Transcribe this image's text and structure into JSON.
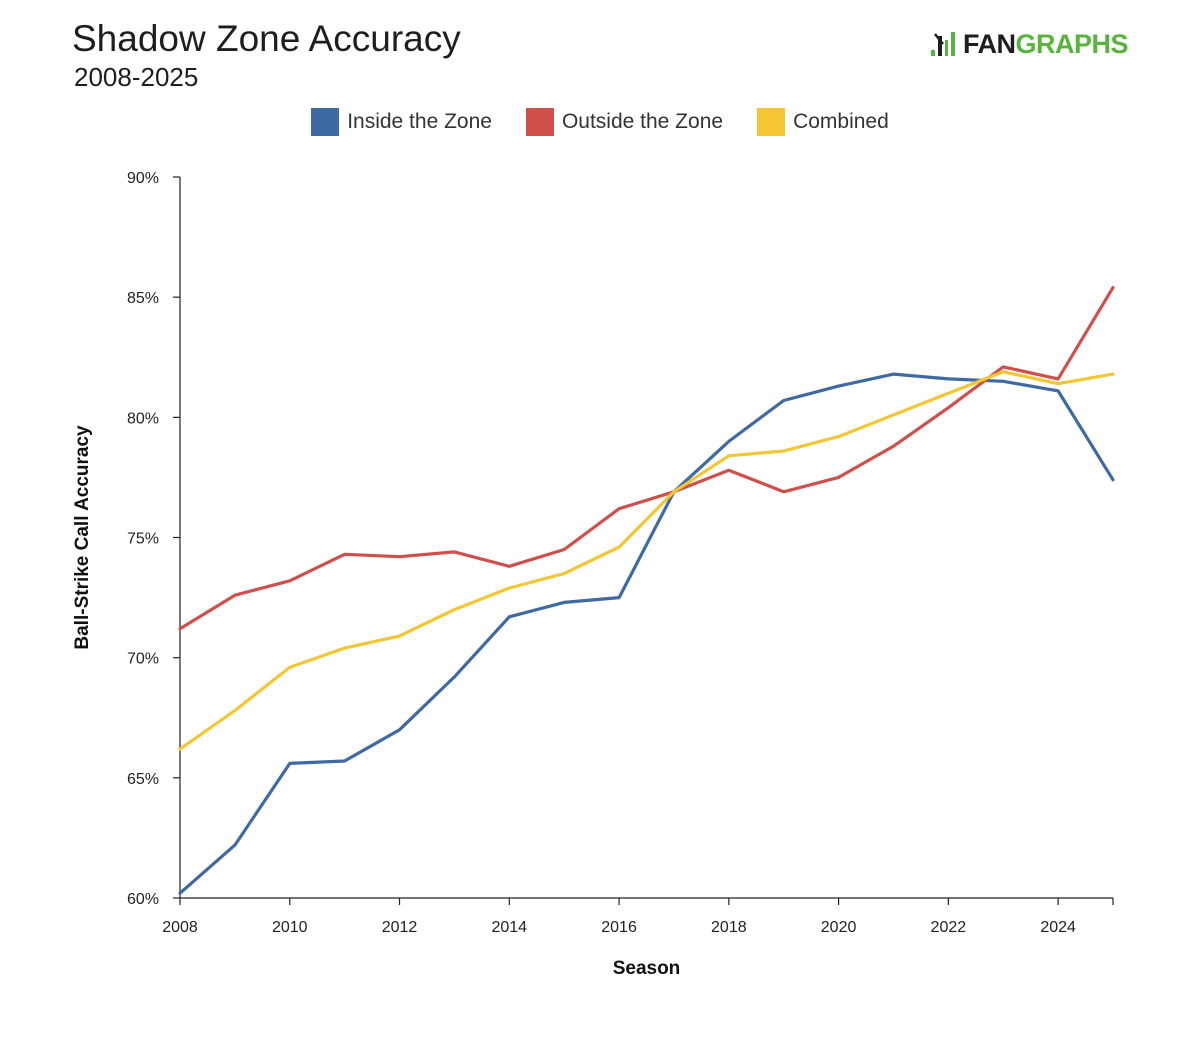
{
  "header": {
    "title": "Shadow Zone Accuracy",
    "subtitle": "2008-2025",
    "brand_left": "FAN",
    "brand_right": "GRAPHS",
    "brand_icon": "batter-icon"
  },
  "colors": {
    "inside": "#3f69a2",
    "outside": "#cf4f4b",
    "combined": "#f4c631",
    "axis": "#222222",
    "brand_green": "#58b33f"
  },
  "chart_data": {
    "type": "line",
    "title": "Shadow Zone Accuracy",
    "subtitle": "2008-2025",
    "xlabel": "Season",
    "ylabel": "Ball-Strike Call Accuracy",
    "x": [
      2008,
      2009,
      2010,
      2011,
      2012,
      2013,
      2014,
      2015,
      2016,
      2017,
      2018,
      2019,
      2020,
      2021,
      2022,
      2023,
      2024,
      2025
    ],
    "xlim": [
      2008,
      2025
    ],
    "ylim": [
      60,
      90
    ],
    "x_ticks": [
      2008,
      2010,
      2012,
      2014,
      2016,
      2018,
      2020,
      2022,
      2024
    ],
    "x_tick_labels": [
      "2008",
      "2010",
      "2012",
      "2014",
      "2016",
      "2018",
      "2020",
      "2022",
      "2024"
    ],
    "y_ticks": [
      60,
      65,
      70,
      75,
      80,
      85,
      90
    ],
    "y_tick_labels": [
      "60%",
      "65%",
      "70%",
      "75%",
      "80%",
      "85%",
      "90%"
    ],
    "grid": false,
    "legend_position": "top-center",
    "series": [
      {
        "name": "Inside the Zone",
        "color": "#3f69a2",
        "values": [
          60.2,
          62.2,
          65.6,
          65.7,
          67.0,
          69.2,
          71.7,
          72.3,
          72.5,
          76.9,
          79.0,
          80.7,
          81.3,
          81.8,
          81.6,
          81.5,
          81.1,
          77.4
        ]
      },
      {
        "name": "Outside the Zone",
        "color": "#cf4f4b",
        "values": [
          71.2,
          72.6,
          73.2,
          74.3,
          74.2,
          74.4,
          73.8,
          74.5,
          76.2,
          76.9,
          77.8,
          76.9,
          77.5,
          78.8,
          80.4,
          82.1,
          81.6,
          85.4
        ]
      },
      {
        "name": "Combined",
        "color": "#f4c631",
        "values": [
          66.2,
          67.8,
          69.6,
          70.4,
          70.9,
          72.0,
          72.9,
          73.5,
          74.6,
          76.9,
          78.4,
          78.6,
          79.2,
          80.1,
          81.0,
          81.9,
          81.4,
          81.8
        ]
      }
    ]
  }
}
